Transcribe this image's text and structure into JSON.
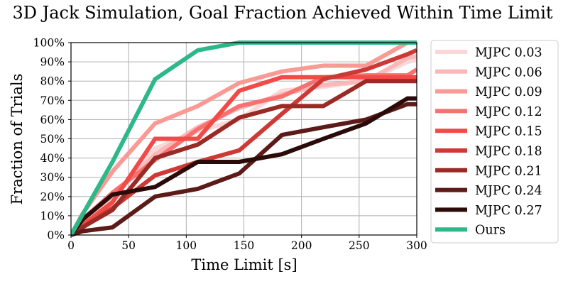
{
  "chart_data": {
    "type": "line",
    "title": "3D Jack Simulation, Goal Fraction Achieved Within Time Limit",
    "xlabel": "Time Limit [s]",
    "ylabel": "Fraction of Trials",
    "xlim": [
      0,
      300
    ],
    "ylim": [
      0,
      100
    ],
    "xticks": [
      0,
      50,
      100,
      150,
      200,
      250,
      300
    ],
    "xtick_labels": [
      "0",
      "50",
      "100",
      "150",
      "200",
      "250",
      "300"
    ],
    "yticks": [
      0,
      10,
      20,
      30,
      40,
      50,
      60,
      70,
      80,
      90,
      100
    ],
    "ytick_labels": [
      "0%",
      "10%",
      "20%",
      "30%",
      "40%",
      "50%",
      "60%",
      "70%",
      "80%",
      "90%",
      "100%"
    ],
    "grid": true,
    "legend_position": "outside-right",
    "series": [
      {
        "name": "MJPC 0.03",
        "color": "#fbd8d8",
        "x": [
          0,
          10,
          36,
          73,
          110,
          146,
          183,
          219,
          256,
          292,
          300
        ],
        "y": [
          0,
          6,
          19,
          45,
          54,
          60,
          75,
          77,
          80,
          90,
          91
        ]
      },
      {
        "name": "MJPC 0.06",
        "color": "#fbb8b8",
        "x": [
          0,
          10,
          36,
          73,
          110,
          146,
          183,
          219,
          256,
          292,
          300
        ],
        "y": [
          0,
          7,
          20,
          42,
          56,
          66,
          73,
          78,
          80,
          92,
          93
        ]
      },
      {
        "name": "MJPC 0.09",
        "color": "#fa9a95",
        "x": [
          0,
          10,
          36,
          73,
          110,
          146,
          183,
          219,
          256,
          292,
          300
        ],
        "y": [
          0,
          11,
          33,
          58,
          67,
          79,
          85,
          88,
          88,
          100,
          100
        ]
      },
      {
        "name": "MJPC 0.12",
        "color": "#f87171",
        "x": [
          0,
          10,
          36,
          73,
          110,
          146,
          183,
          219,
          256,
          292,
          300
        ],
        "y": [
          0,
          8,
          22,
          39,
          55,
          67,
          72,
          82,
          83,
          83,
          86
        ]
      },
      {
        "name": "MJPC 0.15",
        "color": "#f24a46",
        "x": [
          0,
          10,
          36,
          73,
          73,
          110,
          146,
          183,
          219,
          256,
          292,
          300
        ],
        "y": [
          0,
          5,
          17,
          50,
          50,
          50,
          75,
          82,
          82,
          82,
          82,
          82
        ]
      },
      {
        "name": "MJPC 0.18",
        "color": "#cd3a36",
        "x": [
          0,
          10,
          36,
          73,
          110,
          146,
          183,
          219,
          256,
          292,
          300
        ],
        "y": [
          0,
          4,
          14,
          31,
          38,
          44,
          63,
          81,
          86,
          94,
          96
        ]
      },
      {
        "name": "MJPC 0.21",
        "color": "#9a2a26",
        "x": [
          0,
          10,
          36,
          73,
          110,
          146,
          183,
          219,
          256,
          292,
          300
        ],
        "y": [
          0,
          4,
          13,
          40,
          47,
          61,
          67,
          67,
          80,
          80,
          80
        ]
      },
      {
        "name": "MJPC 0.24",
        "color": "#5c1b18",
        "x": [
          0,
          10,
          36,
          73,
          110,
          146,
          183,
          219,
          256,
          292,
          300
        ],
        "y": [
          0,
          2,
          4,
          20,
          24,
          32,
          52,
          56,
          60,
          68,
          68
        ]
      },
      {
        "name": "MJPC 0.27",
        "color": "#2a0b09",
        "x": [
          0,
          10,
          36,
          73,
          110,
          146,
          183,
          219,
          256,
          292,
          300
        ],
        "y": [
          0,
          8,
          21,
          25,
          38,
          38,
          42,
          50,
          58,
          71,
          71
        ]
      },
      {
        "name": "Ours",
        "color": "#2db88a",
        "x": [
          0,
          36,
          73,
          110,
          146,
          183,
          219,
          256,
          292,
          300
        ],
        "y": [
          0,
          38,
          81,
          96,
          100,
          100,
          100,
          100,
          100,
          100
        ]
      }
    ]
  }
}
